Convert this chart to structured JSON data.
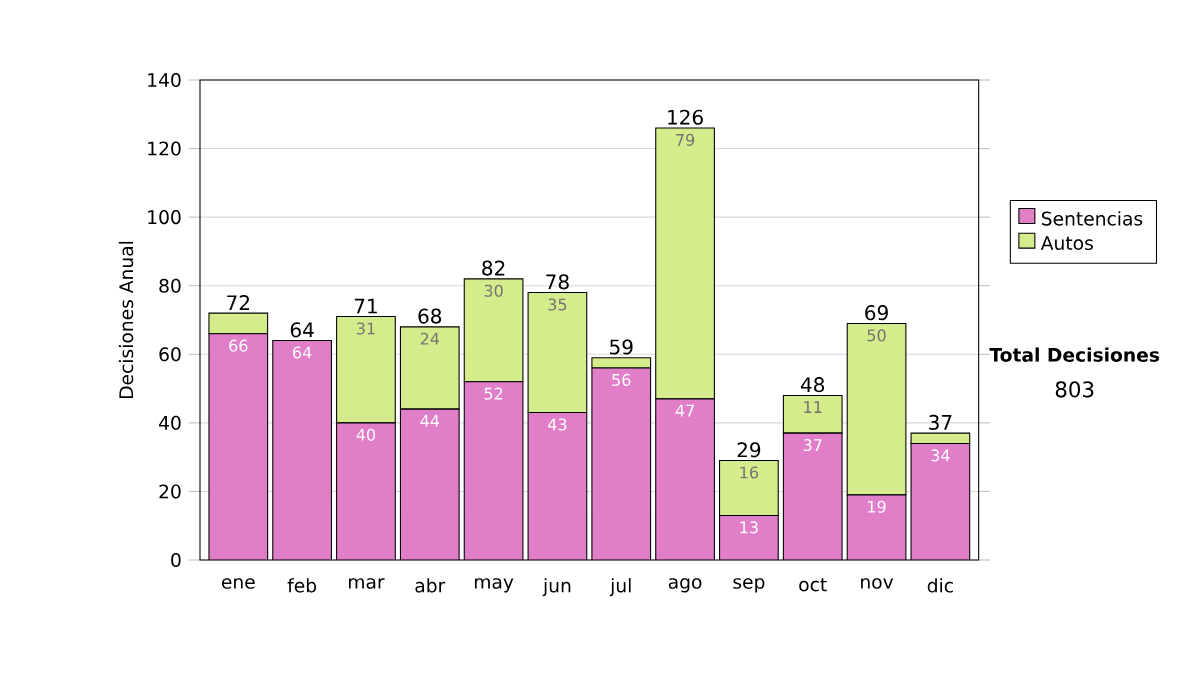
{
  "chart_data": {
    "type": "bar",
    "stacked": true,
    "ylabel": "Decisiones Anual",
    "categories": [
      "ene",
      "feb",
      "mar",
      "abr",
      "may",
      "jun",
      "jul",
      "ago",
      "sep",
      "oct",
      "nov",
      "dic"
    ],
    "series": [
      {
        "name": "Sentencias",
        "color": "#e07fc8",
        "values": [
          66,
          64,
          40,
          44,
          52,
          43,
          56,
          47,
          13,
          37,
          19,
          34
        ],
        "value_labels": [
          "66",
          "64",
          "40",
          "44",
          "52",
          "43",
          "56",
          "47",
          "13",
          "37",
          "19",
          "34"
        ]
      },
      {
        "name": "Autos",
        "color": "#d4ec8c",
        "values": [
          6,
          0,
          31,
          24,
          30,
          35,
          3,
          79,
          16,
          11,
          50,
          3
        ],
        "value_labels": [
          null,
          null,
          "31",
          "24",
          "30",
          "35",
          null,
          "79",
          "16",
          "11",
          "50",
          null
        ]
      }
    ],
    "totals": [
      "72",
      "64",
      "71",
      "68",
      "82",
      "78",
      "59",
      "126",
      "29",
      "48",
      "69",
      "37"
    ],
    "ylim": [
      0,
      140
    ],
    "yticks": [
      0,
      20,
      40,
      60,
      80,
      100,
      120,
      140
    ],
    "grid": "y",
    "legend": "right",
    "annotations": [
      "Total Decisiones",
      "803"
    ]
  }
}
